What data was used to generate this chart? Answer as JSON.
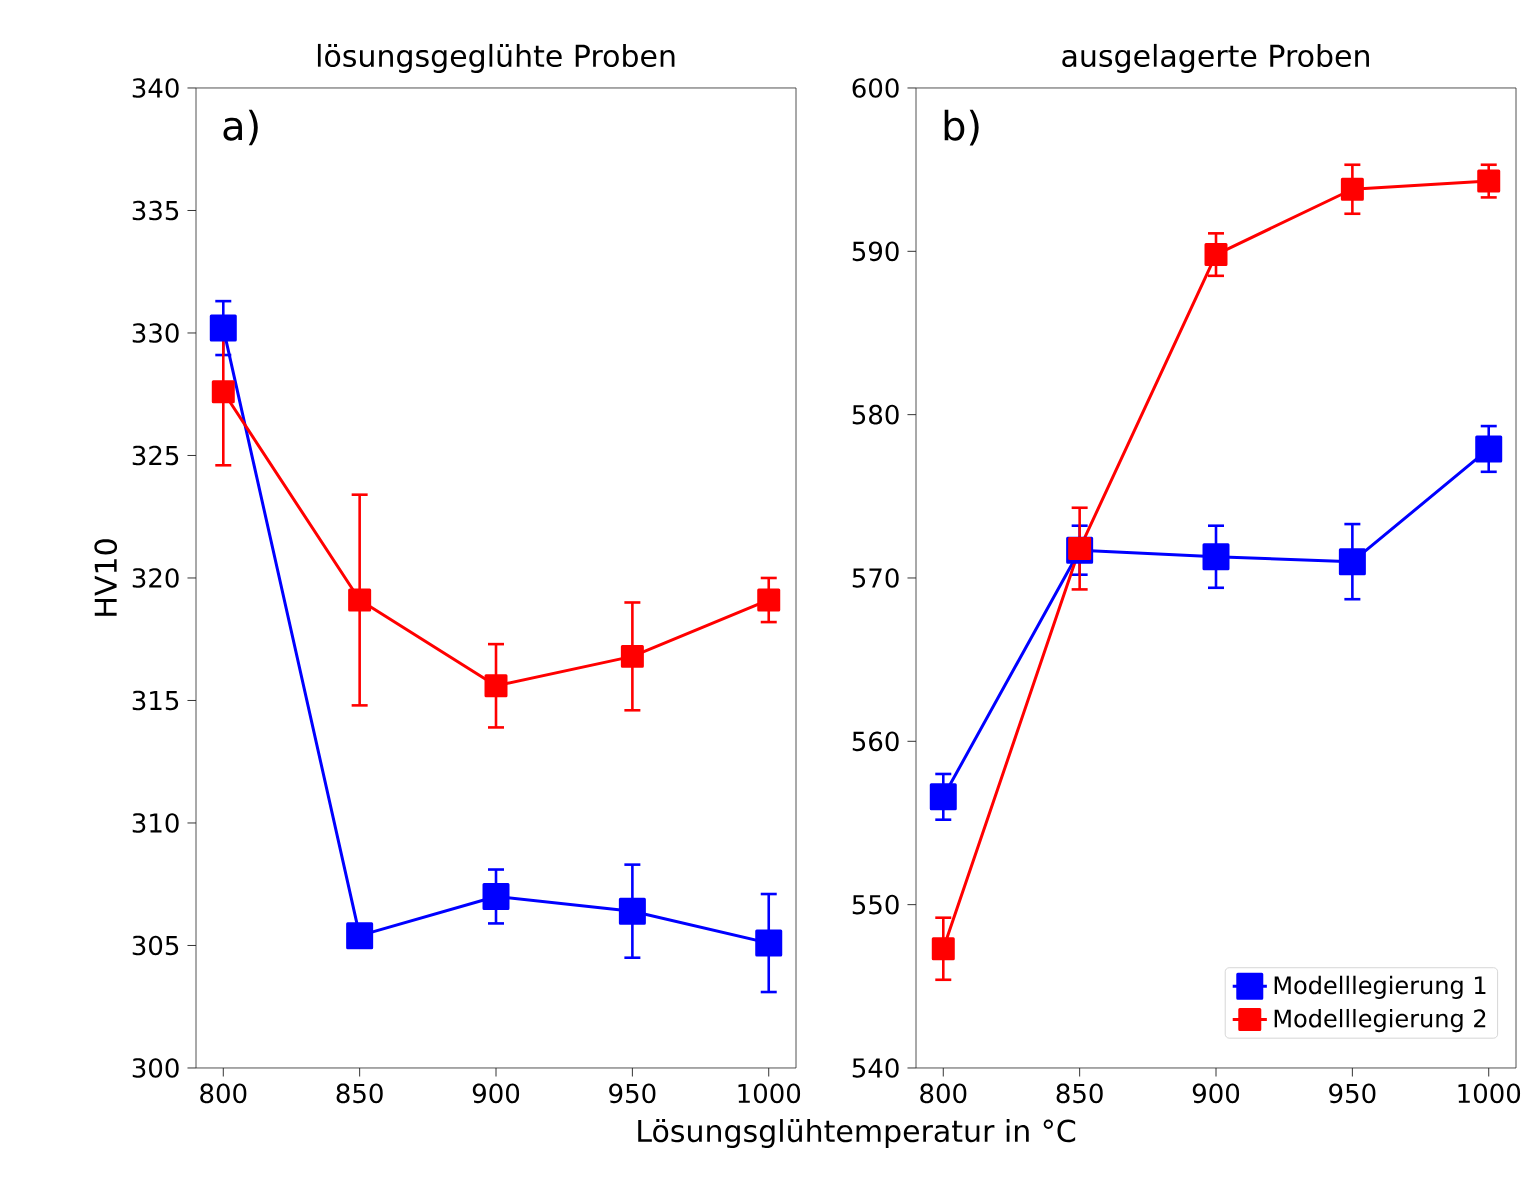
{
  "chart_data": [
    {
      "type": "line",
      "title": "lösungsgeglühte Proben",
      "xlabel": "Lösungsglühtemperatur in °C",
      "ylabel": "HV10",
      "annotations": [
        "a)"
      ],
      "marker": "square",
      "line_style": "solid",
      "x": [
        800,
        850,
        900,
        950,
        1000
      ],
      "xlim": [
        790,
        1010
      ],
      "xticks": [
        800,
        850,
        900,
        950,
        1000
      ],
      "ylim": [
        300,
        340
      ],
      "yticks": [
        300,
        305,
        310,
        315,
        320,
        325,
        330,
        335,
        340
      ],
      "series": [
        {
          "color": "#0000ff",
          "values": [
            330.2,
            305.4,
            307.0,
            306.4,
            305.1
          ],
          "errors": [
            1.1,
            0.4,
            1.1,
            1.9,
            2.0
          ]
        },
        {
          "color": "#ff0000",
          "values": [
            327.6,
            319.1,
            315.6,
            316.8,
            319.1
          ],
          "errors": [
            3.0,
            4.3,
            1.7,
            2.2,
            0.9
          ]
        }
      ]
    },
    {
      "type": "line",
      "title": "ausgelagerte Proben",
      "annotations": [
        "b)"
      ],
      "marker": "square",
      "line_style": "solid",
      "legend": "bottom right",
      "x": [
        800,
        850,
        900,
        950,
        1000
      ],
      "xlim": [
        790,
        1010
      ],
      "xticks": [
        800,
        850,
        900,
        950,
        1000
      ],
      "ylim": [
        540,
        600
      ],
      "yticks": [
        540,
        550,
        560,
        570,
        580,
        590,
        600
      ],
      "series": [
        {
          "name": "Modelllegierung 1",
          "color": "#0000ff",
          "values": [
            556.6,
            571.7,
            571.3,
            571.0,
            577.9
          ],
          "errors": [
            1.4,
            1.5,
            1.9,
            2.3,
            1.4
          ]
        },
        {
          "name": "Modelllegierung 2",
          "color": "#ff0000",
          "values": [
            547.3,
            571.8,
            589.8,
            593.8,
            594.3
          ],
          "errors": [
            1.9,
            2.5,
            1.3,
            1.5,
            1.0
          ]
        }
      ]
    }
  ]
}
